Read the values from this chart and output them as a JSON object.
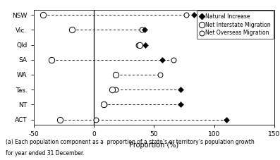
{
  "states": [
    "NSW",
    "Vic.",
    "Qld",
    "SA",
    "WA",
    "Tas.",
    "NT",
    "ACT"
  ],
  "natural_increase": [
    83,
    42,
    43,
    57,
    18,
    72,
    72,
    110
  ],
  "net_interstate": [
    -42,
    -18,
    38,
    -35,
    18,
    15,
    8,
    -28
  ],
  "net_overseas": [
    77,
    40,
    37,
    66,
    55,
    18,
    9,
    2
  ],
  "xlim": [
    -50,
    150
  ],
  "xticks": [
    -50,
    0,
    50,
    100,
    150
  ],
  "xlabel": "Proportion (%)",
  "footnote_line1": "(a) Each population component as a  proportion of a state’s or territory’s population growth",
  "footnote_line2": "for year ended 31 December.",
  "legend_labels": [
    "Natural Increase",
    "Net Interstate Migration",
    "Net Overseas Migration"
  ]
}
